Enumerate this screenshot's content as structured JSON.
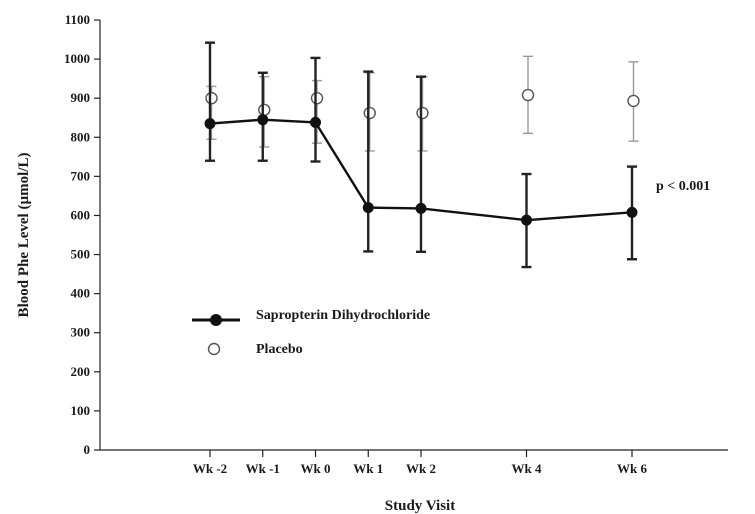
{
  "chart_data": {
    "type": "line",
    "title": "",
    "xlabel": "Study Visit",
    "ylabel": "Blood Phe Level (µmol/L)",
    "ylim": [
      0,
      1100
    ],
    "yticks": [
      0,
      100,
      200,
      300,
      400,
      500,
      600,
      700,
      800,
      900,
      1000,
      1100
    ],
    "categories": [
      "Wk -2",
      "Wk -1",
      "Wk 0",
      "Wk 1",
      "Wk 2",
      "Wk 4",
      "Wk 6"
    ],
    "x_weeks": [
      -2,
      -1,
      0,
      1,
      2,
      4,
      6
    ],
    "grid": false,
    "legend_position": "center-left",
    "series": [
      {
        "name": "Sapropterin Dihydrochloride",
        "marker": "filled-circle",
        "connected": true,
        "color": "#111111",
        "values": [
          835,
          845,
          838,
          620,
          618,
          588,
          608
        ],
        "error_upper": [
          1042,
          965,
          1003,
          968,
          955,
          706,
          725
        ],
        "error_lower": [
          740,
          740,
          738,
          508,
          507,
          468,
          488
        ]
      },
      {
        "name": "Placebo",
        "marker": "open-circle",
        "connected": false,
        "color": "#777777",
        "values": [
          900,
          870,
          900,
          862,
          862,
          908,
          893
        ],
        "error_upper": [
          930,
          955,
          945,
          965,
          955,
          1007,
          993
        ],
        "error_lower": [
          795,
          775,
          785,
          765,
          765,
          810,
          790
        ]
      }
    ],
    "annotations": [
      {
        "text": "p < 0.001"
      }
    ]
  }
}
